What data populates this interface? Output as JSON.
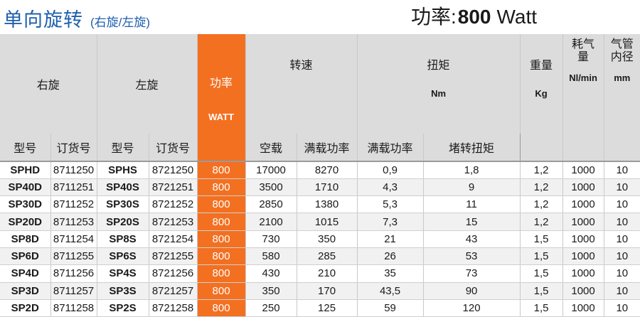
{
  "header": {
    "title": "单向旋转",
    "subtitle": "(右旋/左旋)",
    "power_label": "功率:",
    "power_value": "800",
    "power_unit": "Watt"
  },
  "columns": {
    "right": "右旋",
    "left": "左旋",
    "power": "功率",
    "power_unit": "WATT",
    "speed": "转速",
    "torque": "扭矩",
    "torque_unit": "Nm",
    "weight": "重量",
    "weight_unit": "Kg",
    "air": "耗气量",
    "air_unit": "Nl/min",
    "hose": "气管内径",
    "hose_unit": "mm",
    "model": "型号",
    "order": "订货号",
    "no_load": "空载",
    "full_load": "满载功率",
    "full_load_torque": "满载功率",
    "stall": "堵转扭矩"
  },
  "rows": [
    {
      "rm": "SPHD",
      "ro": "8711250",
      "lm": "SPHS",
      "lo": "8721250",
      "p": "800",
      "s0": "17000",
      "s1": "8270",
      "t1": "0,9",
      "t2": "1,8",
      "w": "1,2",
      "a": "1000",
      "h": "10"
    },
    {
      "rm": "SP40D",
      "ro": "8711251",
      "lm": "SP40S",
      "lo": "8721251",
      "p": "800",
      "s0": "3500",
      "s1": "1710",
      "t1": "4,3",
      "t2": "9",
      "w": "1,2",
      "a": "1000",
      "h": "10"
    },
    {
      "rm": "SP30D",
      "ro": "8711252",
      "lm": "SP30S",
      "lo": "8721252",
      "p": "800",
      "s0": "2850",
      "s1": "1380",
      "t1": "5,3",
      "t2": "11",
      "w": "1,2",
      "a": "1000",
      "h": "10"
    },
    {
      "rm": "SP20D",
      "ro": "8711253",
      "lm": "SP20S",
      "lo": "8721253",
      "p": "800",
      "s0": "2100",
      "s1": "1015",
      "t1": "7,3",
      "t2": "15",
      "w": "1,2",
      "a": "1000",
      "h": "10"
    },
    {
      "rm": "SP8D",
      "ro": "8711254",
      "lm": "SP8S",
      "lo": "8721254",
      "p": "800",
      "s0": "730",
      "s1": "350",
      "t1": "21",
      "t2": "43",
      "w": "1,5",
      "a": "1000",
      "h": "10"
    },
    {
      "rm": "SP6D",
      "ro": "8711255",
      "lm": "SP6S",
      "lo": "8721255",
      "p": "800",
      "s0": "580",
      "s1": "285",
      "t1": "26",
      "t2": "53",
      "w": "1,5",
      "a": "1000",
      "h": "10"
    },
    {
      "rm": "SP4D",
      "ro": "8711256",
      "lm": "SP4S",
      "lo": "8721256",
      "p": "800",
      "s0": "430",
      "s1": "210",
      "t1": "35",
      "t2": "73",
      "w": "1,5",
      "a": "1000",
      "h": "10"
    },
    {
      "rm": "SP3D",
      "ro": "8711257",
      "lm": "SP3S",
      "lo": "8721257",
      "p": "800",
      "s0": "350",
      "s1": "170",
      "t1": "43,5",
      "t2": "90",
      "w": "1,5",
      "a": "1000",
      "h": "10"
    },
    {
      "rm": "SP2D",
      "ro": "8711258",
      "lm": "SP2S",
      "lo": "8721258",
      "p": "800",
      "s0": "250",
      "s1": "125",
      "t1": "59",
      "t2": "120",
      "w": "1,5",
      "a": "1000",
      "h": "10"
    }
  ]
}
